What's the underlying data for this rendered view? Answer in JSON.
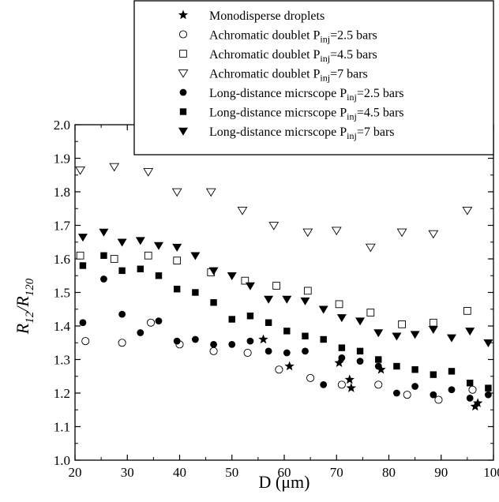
{
  "chart_data": {
    "type": "scatter",
    "xlabel": "D (μm)",
    "ylabel_main": "R",
    "ylabel_sub1": "12",
    "ylabel_slash": "/R",
    "ylabel_sub2": "120",
    "xlim": [
      20,
      100
    ],
    "ylim": [
      1.0,
      2.0
    ],
    "x_ticks": [
      20,
      30,
      40,
      50,
      60,
      70,
      80,
      90,
      100
    ],
    "y_ticks": [
      1.0,
      1.1,
      1.2,
      1.3,
      1.4,
      1.5,
      1.6,
      1.7,
      1.8,
      1.9,
      2.0
    ],
    "y_tick_labels": [
      "1.0",
      "1.1",
      "1.2",
      "1.3",
      "1.4",
      "1.5",
      "1.6",
      "1.7",
      "1.8",
      "1.9",
      "2.0"
    ],
    "grid": false,
    "legend_position": "top-right",
    "series": [
      {
        "name_main": "Monodisperse droplets",
        "name_sub": "",
        "name_tail": "",
        "marker": "star",
        "points": [
          [
            56,
            1.36
          ],
          [
            61,
            1.28
          ],
          [
            70.5,
            1.29
          ],
          [
            72.5,
            1.24
          ],
          [
            72.8,
            1.215
          ],
          [
            78.5,
            1.27
          ],
          [
            96.5,
            1.16
          ],
          [
            97,
            1.17
          ]
        ]
      },
      {
        "name_main": "Achromatic doublet P",
        "name_sub": "inj",
        "name_tail": "=2.5 bars",
        "marker": "circle-open",
        "points": [
          [
            22,
            1.355
          ],
          [
            29,
            1.35
          ],
          [
            34.5,
            1.41
          ],
          [
            40,
            1.345
          ],
          [
            46.5,
            1.325
          ],
          [
            53,
            1.32
          ],
          [
            59,
            1.27
          ],
          [
            65,
            1.245
          ],
          [
            71,
            1.225
          ],
          [
            78,
            1.225
          ],
          [
            83.5,
            1.195
          ],
          [
            89.5,
            1.18
          ],
          [
            96,
            1.21
          ]
        ]
      },
      {
        "name_main": "Achromatic doublet P",
        "name_sub": "inj",
        "name_tail": "=4.5 bars",
        "marker": "square-open",
        "points": [
          [
            21,
            1.61
          ],
          [
            27.5,
            1.6
          ],
          [
            34,
            1.61
          ],
          [
            39.5,
            1.595
          ],
          [
            46,
            1.56
          ],
          [
            52.5,
            1.535
          ],
          [
            58.5,
            1.52
          ],
          [
            64.5,
            1.505
          ],
          [
            70.5,
            1.465
          ],
          [
            76.5,
            1.44
          ],
          [
            82.5,
            1.405
          ],
          [
            88.5,
            1.41
          ],
          [
            95,
            1.445
          ]
        ]
      },
      {
        "name_main": "Achromatic doublet P",
        "name_sub": "inj",
        "name_tail": "=7 bars",
        "marker": "triangle-down-open",
        "points": [
          [
            21,
            1.865
          ],
          [
            27.5,
            1.875
          ],
          [
            34,
            1.86
          ],
          [
            39.5,
            1.8
          ],
          [
            46,
            1.8
          ],
          [
            52,
            1.745
          ],
          [
            58,
            1.7
          ],
          [
            64.5,
            1.68
          ],
          [
            70,
            1.685
          ],
          [
            76.5,
            1.635
          ],
          [
            82.5,
            1.68
          ],
          [
            88.5,
            1.675
          ],
          [
            95,
            1.745
          ]
        ]
      },
      {
        "name_main": "Long-distance micrscope P",
        "name_sub": "inj",
        "name_tail": "=2.5 bars",
        "marker": "circle-filled",
        "points": [
          [
            21.5,
            1.41
          ],
          [
            25.5,
            1.54
          ],
          [
            29,
            1.435
          ],
          [
            32.5,
            1.38
          ],
          [
            36,
            1.415
          ],
          [
            39.5,
            1.355
          ],
          [
            43,
            1.36
          ],
          [
            46.5,
            1.345
          ],
          [
            50,
            1.345
          ],
          [
            53.5,
            1.355
          ],
          [
            57,
            1.325
          ],
          [
            60.5,
            1.32
          ],
          [
            64,
            1.325
          ],
          [
            67.5,
            1.225
          ],
          [
            71,
            1.305
          ],
          [
            74.5,
            1.295
          ],
          [
            78,
            1.28
          ],
          [
            81.5,
            1.2
          ],
          [
            85,
            1.22
          ],
          [
            88.5,
            1.195
          ],
          [
            92,
            1.21
          ],
          [
            95.5,
            1.185
          ],
          [
            99,
            1.195
          ]
        ]
      },
      {
        "name_main": "Long-distance micrscope P",
        "name_sub": "inj",
        "name_tail": "=4.5 bars",
        "marker": "square-filled",
        "points": [
          [
            21.5,
            1.58
          ],
          [
            25.5,
            1.61
          ],
          [
            29,
            1.565
          ],
          [
            32.5,
            1.57
          ],
          [
            36,
            1.55
          ],
          [
            39.5,
            1.51
          ],
          [
            43,
            1.5
          ],
          [
            46.5,
            1.47
          ],
          [
            50,
            1.42
          ],
          [
            53.5,
            1.43
          ],
          [
            57,
            1.41
          ],
          [
            60.5,
            1.385
          ],
          [
            64,
            1.37
          ],
          [
            67.5,
            1.36
          ],
          [
            71,
            1.335
          ],
          [
            74.5,
            1.325
          ],
          [
            78,
            1.3
          ],
          [
            81.5,
            1.28
          ],
          [
            85,
            1.27
          ],
          [
            88.5,
            1.255
          ],
          [
            92,
            1.265
          ],
          [
            95.5,
            1.23
          ],
          [
            99,
            1.215
          ]
        ]
      },
      {
        "name_main": "Long-distance micrscope P",
        "name_sub": "inj",
        "name_tail": "=7 bars",
        "marker": "triangle-down-filled",
        "points": [
          [
            21.5,
            1.665
          ],
          [
            25.5,
            1.68
          ],
          [
            29,
            1.65
          ],
          [
            32.5,
            1.655
          ],
          [
            36,
            1.64
          ],
          [
            39.5,
            1.635
          ],
          [
            43,
            1.61
          ],
          [
            46.5,
            1.565
          ],
          [
            50,
            1.55
          ],
          [
            53.5,
            1.52
          ],
          [
            57,
            1.48
          ],
          [
            60.5,
            1.48
          ],
          [
            64,
            1.475
          ],
          [
            67.5,
            1.45
          ],
          [
            71,
            1.425
          ],
          [
            74.5,
            1.415
          ],
          [
            78,
            1.38
          ],
          [
            81.5,
            1.37
          ],
          [
            85,
            1.375
          ],
          [
            88.5,
            1.39
          ],
          [
            92,
            1.365
          ],
          [
            95.5,
            1.385
          ],
          [
            99,
            1.35
          ]
        ]
      }
    ]
  }
}
